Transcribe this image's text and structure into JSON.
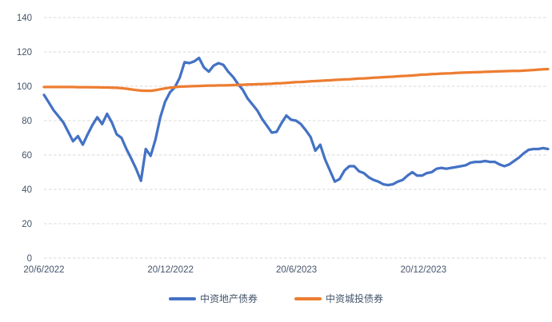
{
  "colors": {
    "series_blue": "#4472C4",
    "series_orange": "#ED7D31",
    "gridline": "#D9D9D9",
    "axis_text": "#44546A",
    "background": "#FFFFFF"
  },
  "chart_data": {
    "type": "line",
    "title": "",
    "xlabel": "",
    "ylabel": "",
    "grid": true,
    "legend_position": "bottom",
    "y_axis": {
      "min": 0,
      "max": 140,
      "step": 20,
      "tick_values": [
        0,
        20,
        40,
        60,
        80,
        100,
        120,
        140
      ],
      "tick_labels": [
        "0",
        "20",
        "40",
        "60",
        "80",
        "100",
        "120",
        "140"
      ]
    },
    "x_axis": {
      "unit": "weeks_from_2022-06-20",
      "total_weeks": 104,
      "ticks": [
        {
          "label": "20/6/2022",
          "week": 0
        },
        {
          "label": "20/12/2022",
          "week": 26.1
        },
        {
          "label": "20/6/2023",
          "week": 52.1
        },
        {
          "label": "20/12/2023",
          "week": 78.3
        }
      ]
    },
    "series": [
      {
        "name": "中资地产债券",
        "key": "property-bonds",
        "color": "#4472C4",
        "values": [
          95,
          90.5,
          86,
          82.5,
          79,
          73.5,
          68,
          71,
          66,
          72,
          77.5,
          82,
          78,
          84,
          79,
          72,
          70,
          63.5,
          58,
          52,
          45,
          63.5,
          59.5,
          69,
          82,
          91,
          96.5,
          99.5,
          105,
          114,
          113.5,
          114.5,
          116.5,
          111,
          108.5,
          112,
          113.5,
          112.5,
          108.5,
          105.5,
          101.5,
          98,
          93,
          89.5,
          86,
          81,
          77,
          73,
          73.5,
          78.5,
          83,
          80.5,
          80,
          78,
          74.5,
          70.5,
          62.5,
          66,
          57.5,
          51,
          44.5,
          46,
          51,
          53.5,
          53.5,
          50.5,
          49.5,
          47,
          45.5,
          44.5,
          43,
          42.5,
          43,
          44.5,
          45.5,
          48,
          50,
          48,
          48,
          49.5,
          50,
          52,
          52.5,
          52,
          52.5,
          53,
          53.5,
          54,
          55.5,
          56,
          56,
          56.5,
          56,
          56,
          54.5,
          53.5,
          54.5,
          56.5,
          58.5,
          61,
          63,
          63.5,
          63.5,
          64,
          63.5
        ]
      },
      {
        "name": "中资城投债券",
        "key": "lgfv-bonds",
        "color": "#ED7D31",
        "values": [
          99.6,
          99.6,
          99.6,
          99.6,
          99.6,
          99.6,
          99.6,
          99.5,
          99.5,
          99.5,
          99.4,
          99.4,
          99.3,
          99.3,
          99.2,
          99.1,
          98.9,
          98.6,
          98.2,
          97.8,
          97.5,
          97.4,
          97.4,
          97.7,
          98.3,
          98.8,
          99.2,
          99.5,
          99.8,
          99.9,
          100.0,
          100.1,
          100.2,
          100.3,
          100.4,
          100.4,
          100.5,
          100.5,
          100.6,
          100.7,
          100.8,
          100.9,
          101.0,
          101.1,
          101.2,
          101.3,
          101.4,
          101.5,
          101.7,
          101.8,
          102.0,
          102.2,
          102.4,
          102.5,
          102.7,
          102.9,
          103.0,
          103.2,
          103.4,
          103.5,
          103.7,
          103.8,
          104.0,
          104.1,
          104.3,
          104.5,
          104.6,
          104.8,
          105.0,
          105.1,
          105.3,
          105.5,
          105.6,
          105.8,
          106.0,
          106.1,
          106.3,
          106.5,
          106.8,
          106.9,
          107.1,
          107.2,
          107.4,
          107.5,
          107.6,
          107.8,
          107.9,
          108.0,
          108.1,
          108.2,
          108.3,
          108.4,
          108.5,
          108.6,
          108.7,
          108.8,
          108.9,
          109.0,
          109.0,
          109.1,
          109.3,
          109.5,
          109.7,
          109.9,
          110.0
        ]
      }
    ]
  },
  "legend": {
    "items": [
      {
        "label": "中资地产债券"
      },
      {
        "label": "中资城投债券"
      }
    ]
  }
}
